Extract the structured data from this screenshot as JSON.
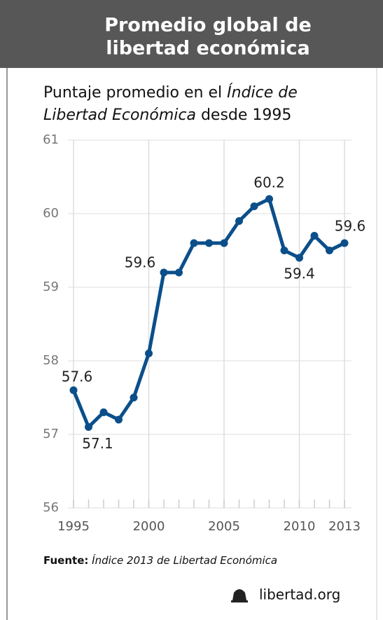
{
  "chart_data": {
    "type": "line",
    "title": [
      "Promedio global de",
      "libertad económica"
    ],
    "subtitle": [
      "Puntaje promedio en el ",
      "Índice de Libertad Económica",
      " desde 1995"
    ],
    "x": [
      1995,
      1996,
      1997,
      1998,
      1999,
      2000,
      2001,
      2002,
      2003,
      2004,
      2005,
      2006,
      2007,
      2008,
      2009,
      2010,
      2011,
      2012,
      2013
    ],
    "series": [
      {
        "name": "Puntaje promedio",
        "color": "#0b4f8a",
        "values": [
          57.6,
          57.1,
          57.3,
          57.2,
          57.5,
          58.1,
          59.2,
          59.2,
          59.6,
          59.6,
          59.6,
          59.9,
          60.1,
          60.2,
          59.5,
          59.4,
          59.7,
          59.5,
          59.6
        ],
        "value_labels": [
          "57.6",
          "57.1",
          null,
          null,
          null,
          null,
          null,
          null,
          "59.6",
          null,
          null,
          null,
          null,
          "60.2",
          null,
          "59.4",
          null,
          null,
          "59.6"
        ]
      }
    ],
    "xlim": [
      1995,
      2013
    ],
    "xticks": [
      1995,
      2000,
      2005,
      2010,
      2013
    ],
    "ylim": [
      56,
      61
    ],
    "yticks": [
      56,
      57,
      58,
      59,
      60,
      61
    ],
    "grid": true,
    "source": [
      "Fuente:",
      "Índice 2013 de Libertad Económica"
    ],
    "footer": "libertad.org"
  }
}
